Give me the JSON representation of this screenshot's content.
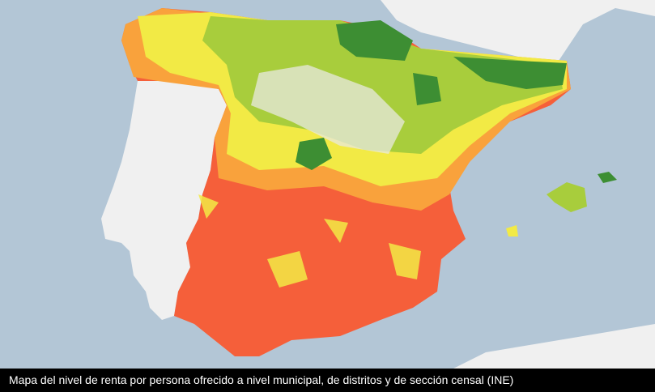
{
  "caption": "Mapa del nivel de renta por persona ofrecido a nivel municipal, de distritos y de sección censal (INE)",
  "colors": {
    "sea": "#b3c6d6",
    "land_other": "#f0f0f0",
    "low_income": "#f55f3a",
    "mid_low": "#f9a23c",
    "mid": "#f2ea45",
    "mid_high": "#a8cd3c",
    "high_income": "#3d8e33"
  }
}
